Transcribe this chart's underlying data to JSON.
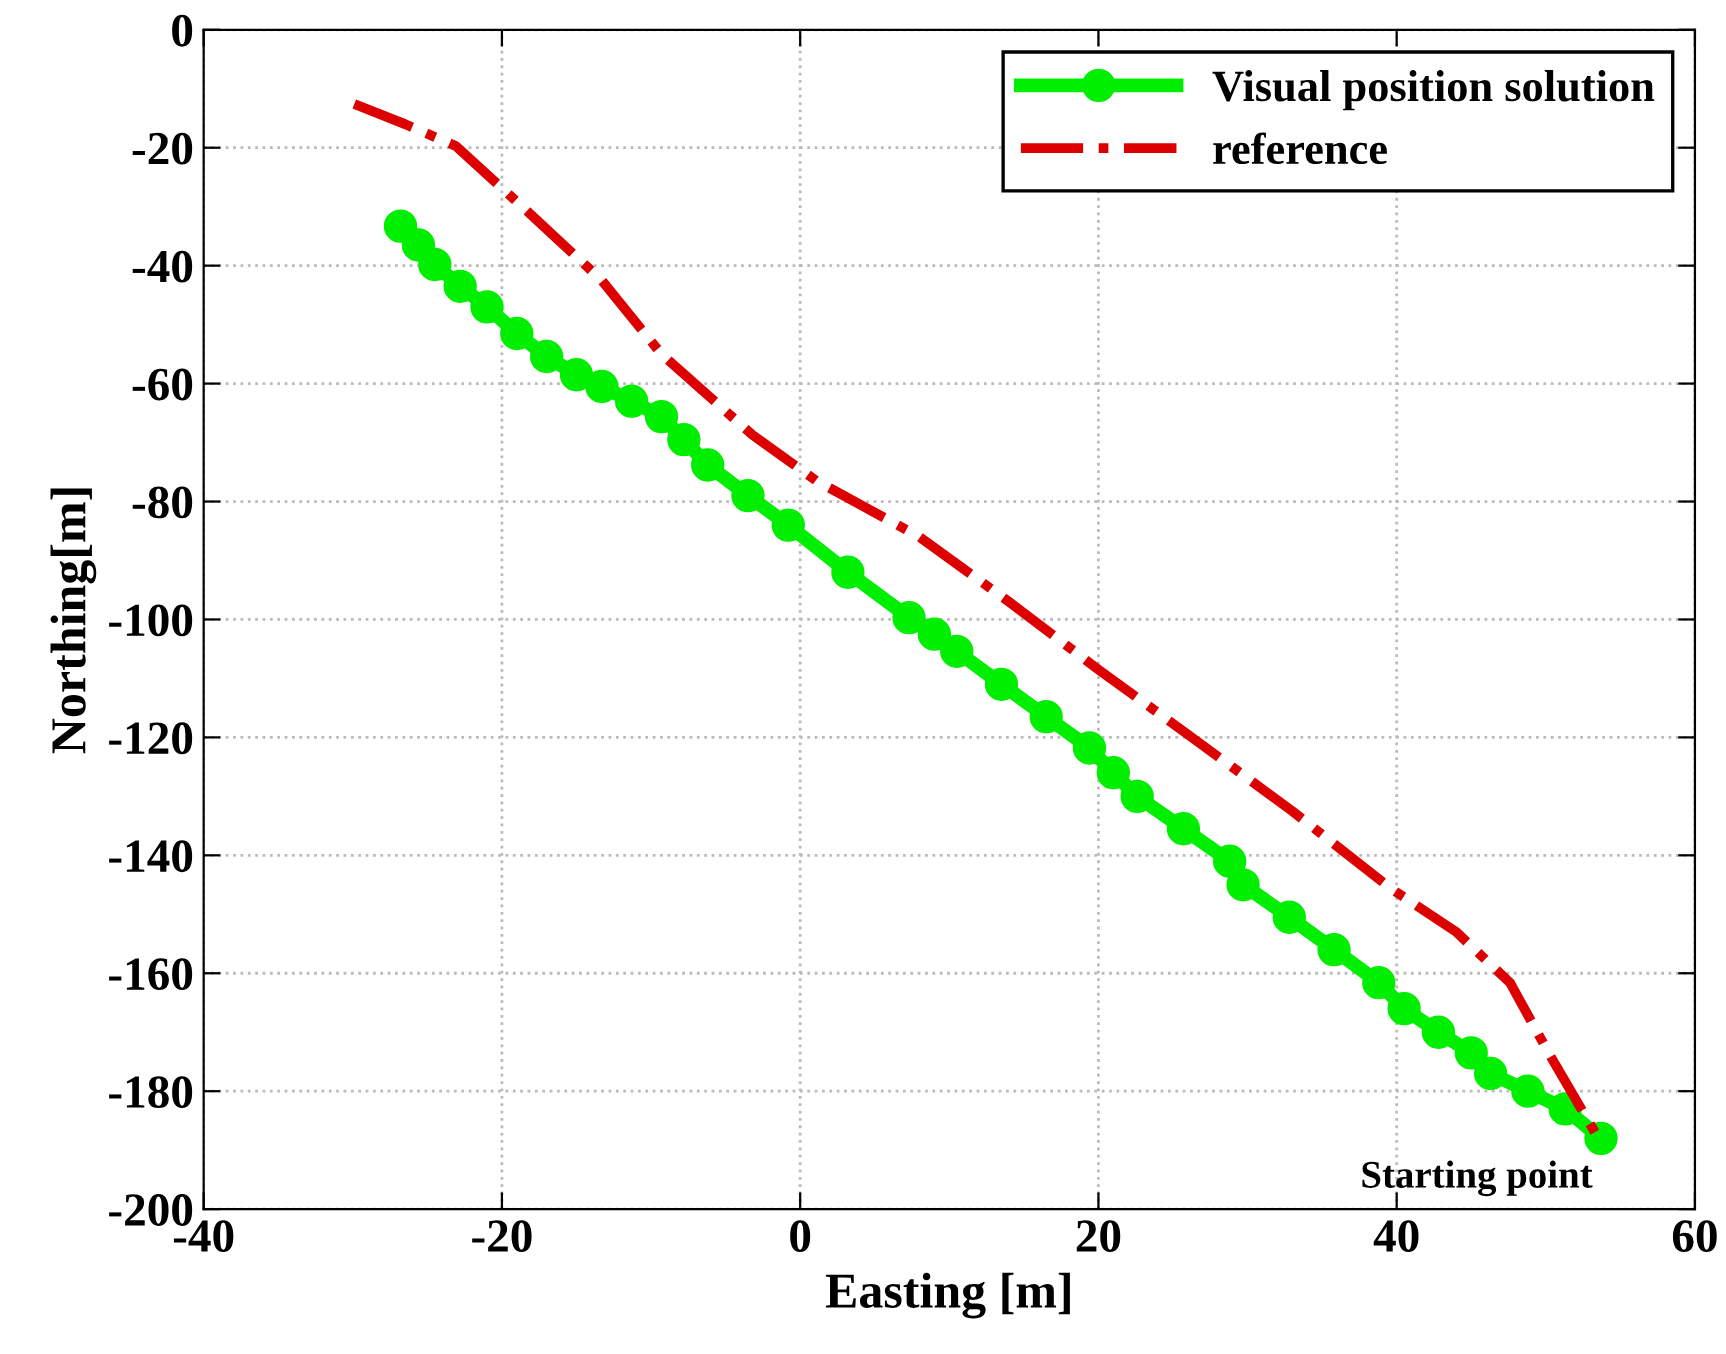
{
  "chart_data": {
    "type": "line",
    "xlabel": "Easting [m]",
    "ylabel": "Northing[m]",
    "xlim": [
      -40,
      60
    ],
    "xticks": [
      -40,
      -20,
      0,
      20,
      40,
      60
    ],
    "ylim": [
      -200,
      0
    ],
    "yticks": [
      -200,
      -180,
      -160,
      -140,
      -120,
      -100,
      -80,
      -60,
      -40,
      -20,
      0
    ],
    "grid": true,
    "legend": "top right",
    "annotations": [
      {
        "text": "Starting point",
        "x": 53.7,
        "y": -188
      }
    ],
    "series": [
      {
        "name": "Visual position solution",
        "color": "#00ee00",
        "marker": "circle",
        "line_style": "solid",
        "x": [
          -26.8,
          -25.6,
          -24.5,
          -22.8,
          -21,
          -19,
          -17,
          -15,
          -13.3,
          -11.3,
          -9.3,
          -7.8,
          -6.2,
          -3.5,
          -0.8,
          3.2,
          7.3,
          9,
          10.5,
          13.5,
          16.5,
          19.4,
          21,
          22.6,
          25.7,
          28.8,
          29.7,
          32.8,
          35.8,
          38.8,
          40.5,
          42.8,
          45,
          46.3,
          48.8,
          51.3,
          53.7
        ],
        "values": [
          -33.3,
          -36.5,
          -39.8,
          -43.5,
          -47,
          -51.5,
          -55.4,
          -58.5,
          -60.5,
          -63,
          -65.6,
          -69.5,
          -73.8,
          -79,
          -84,
          -92,
          -99.7,
          -102.5,
          -105.4,
          -111,
          -116.5,
          -121.8,
          -126,
          -130,
          -135.5,
          -141,
          -145,
          -150.5,
          -156,
          -161.6,
          -166,
          -170,
          -173.5,
          -177,
          -180,
          -183,
          -188
        ]
      },
      {
        "name": "reference",
        "color": "#dd0000",
        "marker": "none",
        "line_style": "dashdot",
        "x": [
          -29.9,
          -26.5,
          -23.1,
          -18.2,
          -13.3,
          -9.3,
          -3.2,
          1.1,
          8,
          14,
          20,
          26.1,
          33,
          39.6,
          44,
          47.6,
          50.3,
          53.3
        ],
        "values": [
          -12.6,
          -16,
          -19.7,
          -31,
          -42.5,
          -55,
          -68.7,
          -76.5,
          -86,
          -97,
          -108.5,
          -119.7,
          -132.5,
          -145.6,
          -153,
          -161.6,
          -174,
          -187
        ]
      }
    ]
  }
}
